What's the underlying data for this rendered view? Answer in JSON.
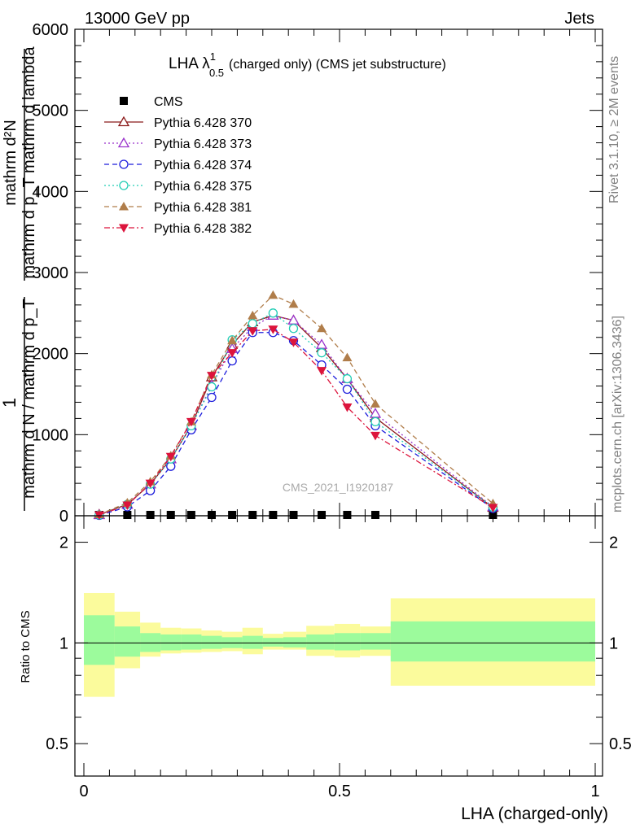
{
  "header": {
    "left": "13000 GeV pp",
    "right": "Jets"
  },
  "side_labels": {
    "rivet": "Rivet 3.1.10, ≥ 2M events",
    "mcplots": "mcplots.cern.ch [arXiv:1306.3436]"
  },
  "watermark": "CMS_2021_I1920187",
  "main_panel": {
    "title": "LHA λ^1_0.5 (charged only) (CMS jet substructure)",
    "title_main": "LHA λ",
    "title_sup": "1",
    "title_sub": "0.5",
    "title_rest": "(charged only) (CMS jet substructure)",
    "ylabel_line1": "mathrm d²N",
    "ylabel_line2": "mathrm d p_T mathrm d lambda",
    "ylabel_prefix": "1",
    "ylabel_denominator": "mathrm d N / mathrm d p_T",
    "ytick_labels": [
      "0",
      "1000",
      "2000",
      "3000",
      "4000",
      "5000",
      "6000"
    ]
  },
  "ratio_panel": {
    "ylabel": "Ratio to CMS",
    "ytick_labels": [
      "0.5",
      "1",
      "2"
    ],
    "xlabel": "LHA (charged-only)",
    "xtick_labels": [
      "0",
      "0.5",
      "1"
    ]
  },
  "legend": {
    "entries": [
      "CMS",
      "Pythia 6.428 370",
      "Pythia 6.428 373",
      "Pythia 6.428 374",
      "Pythia 6.428 375",
      "Pythia 6.428 381",
      "Pythia 6.428 382"
    ]
  },
  "colors": {
    "cms": "#000000",
    "p370": "#8b1a1a",
    "p373": "#9932cc",
    "p374": "#1c1cdc",
    "p375": "#22cdb5",
    "p381": "#b07d4a",
    "p382": "#dc143c",
    "band_inner": "#9cfb9c",
    "band_outer": "#fbfb9c"
  },
  "chart_data": {
    "type": "line",
    "title": "LHA λ^1_0.5 (charged only) (CMS jet substructure)",
    "xlabel": "LHA (charged-only)",
    "ylabel": "1 / (mathrm d N / mathrm d p_T) · mathrm d²N / (mathrm d p_T mathrm d lambda)",
    "xlim": [
      0,
      1
    ],
    "ylim": [
      0,
      6000
    ],
    "x": [
      0.03,
      0.085,
      0.13,
      0.17,
      0.21,
      0.25,
      0.29,
      0.33,
      0.37,
      0.41,
      0.465,
      0.515,
      0.57,
      0.8
    ],
    "series": [
      {
        "name": "CMS",
        "style": "data",
        "values": [
          0,
          5,
          10,
          10,
          10,
          10,
          10,
          10,
          10,
          10,
          10,
          10,
          10,
          10
        ]
      },
      {
        "name": "Pythia 6.428 370",
        "style": "solid-open-triangle",
        "values": [
          15,
          140,
          390,
          700,
          1110,
          1710,
          2110,
          2390,
          2470,
          2410,
          2070,
          1690,
          1210,
          100
        ]
      },
      {
        "name": "Pythia 6.428 373",
        "style": "dotted-open-triangle",
        "values": [
          10,
          140,
          390,
          700,
          1110,
          1610,
          2060,
          2330,
          2470,
          2410,
          2110,
          1690,
          1260,
          110
        ]
      },
      {
        "name": "Pythia 6.428 374",
        "style": "dashed-open-circle",
        "values": [
          5,
          110,
          310,
          610,
          1060,
          1460,
          1910,
          2260,
          2260,
          2160,
          1860,
          1560,
          1110,
          90
        ]
      },
      {
        "name": "Pythia 6.428 375",
        "style": "dotted-open-circle",
        "values": [
          10,
          140,
          390,
          700,
          1110,
          1590,
          2170,
          2370,
          2500,
          2310,
          2010,
          1690,
          1160,
          105
        ]
      },
      {
        "name": "Pythia 6.428 381",
        "style": "dashed-filled-triangle",
        "values": [
          15,
          160,
          420,
          740,
          1160,
          1740,
          2160,
          2470,
          2720,
          2610,
          2310,
          1950,
          1380,
          150
        ]
      },
      {
        "name": "Pythia 6.428 382",
        "style": "dashdot-filled-down-triangle",
        "values": [
          10,
          130,
          400,
          730,
          1160,
          1730,
          2010,
          2280,
          2300,
          2140,
          1790,
          1340,
          990,
          100
        ]
      }
    ],
    "ratio": {
      "ylabel": "Ratio to CMS",
      "yscale": "log",
      "ylim": [
        0.4,
        2.4
      ],
      "reference": 1,
      "bins": [
        [
          0,
          0.06
        ],
        [
          0.06,
          0.11
        ],
        [
          0.11,
          0.15
        ],
        [
          0.15,
          0.19
        ],
        [
          0.19,
          0.23
        ],
        [
          0.23,
          0.27
        ],
        [
          0.27,
          0.31
        ],
        [
          0.31,
          0.35
        ],
        [
          0.35,
          0.39
        ],
        [
          0.39,
          0.435
        ],
        [
          0.435,
          0.49
        ],
        [
          0.49,
          0.54
        ],
        [
          0.54,
          0.6
        ],
        [
          0.6,
          1.0
        ]
      ],
      "band_inner": [
        [
          0.86,
          1.21
        ],
        [
          0.91,
          1.12
        ],
        [
          0.94,
          1.07
        ],
        [
          0.95,
          1.06
        ],
        [
          0.955,
          1.06
        ],
        [
          0.96,
          1.05
        ],
        [
          0.965,
          1.04
        ],
        [
          0.96,
          1.05
        ],
        [
          0.975,
          1.035
        ],
        [
          0.97,
          1.04
        ],
        [
          0.955,
          1.06
        ],
        [
          0.95,
          1.07
        ],
        [
          0.955,
          1.07
        ],
        [
          0.88,
          1.16
        ]
      ],
      "band_outer": [
        [
          0.69,
          1.41
        ],
        [
          0.84,
          1.24
        ],
        [
          0.91,
          1.15
        ],
        [
          0.93,
          1.11
        ],
        [
          0.935,
          1.105
        ],
        [
          0.94,
          1.09
        ],
        [
          0.945,
          1.08
        ],
        [
          0.925,
          1.11
        ],
        [
          0.955,
          1.065
        ],
        [
          0.955,
          1.08
        ],
        [
          0.915,
          1.125
        ],
        [
          0.905,
          1.14
        ],
        [
          0.915,
          1.12
        ],
        [
          0.745,
          1.36
        ]
      ]
    }
  }
}
